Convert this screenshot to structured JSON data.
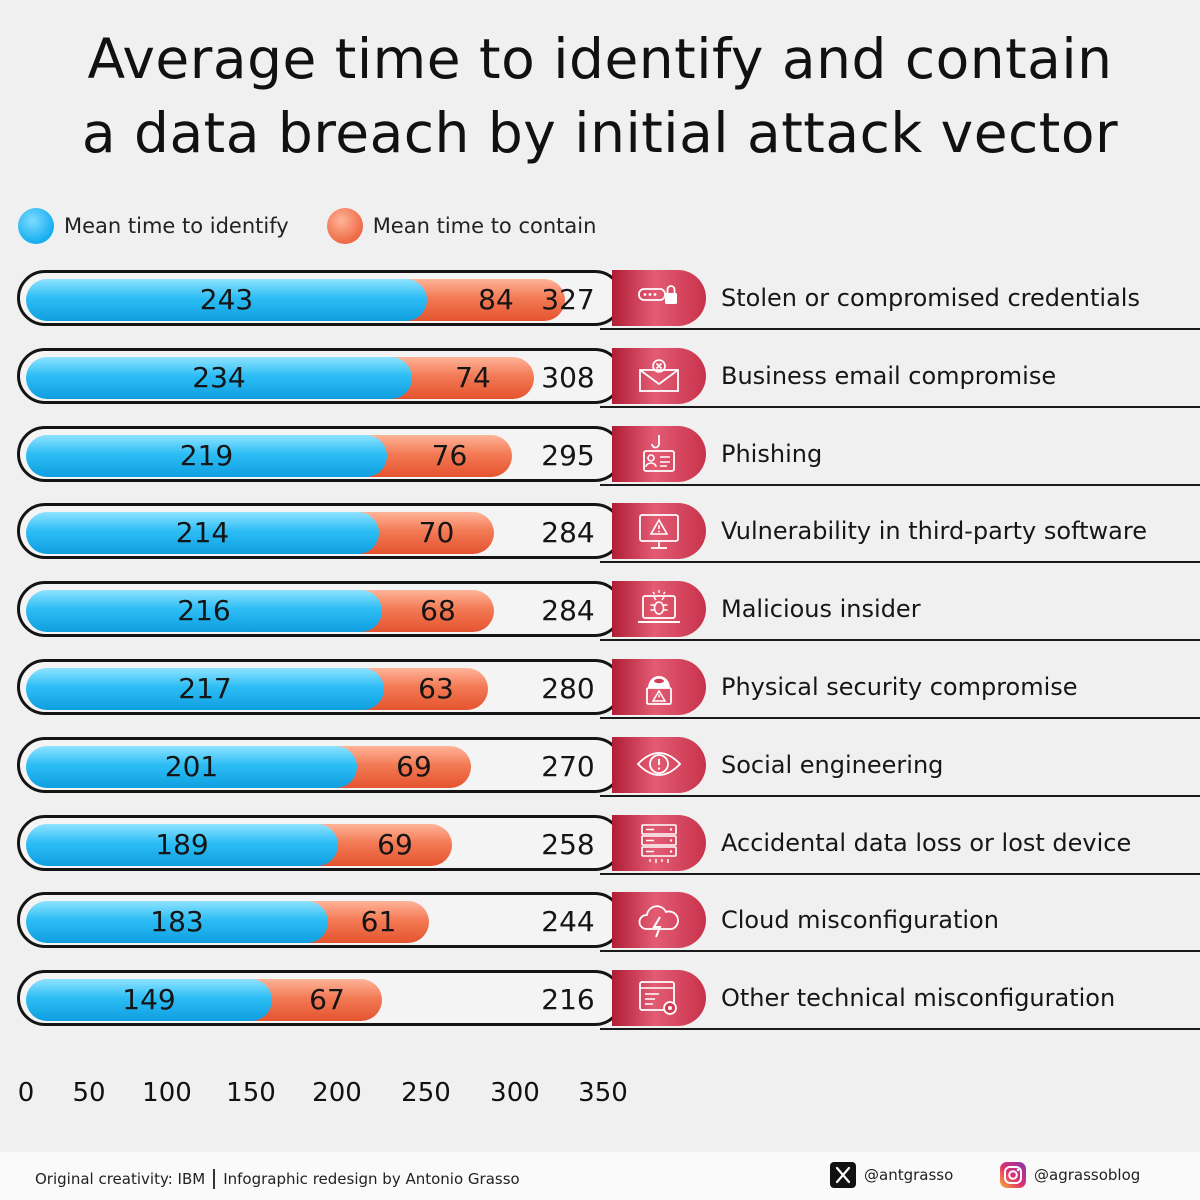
{
  "title_line1": "Average time to identify and contain",
  "title_line2": "a data breach by initial attack vector",
  "legend": {
    "identify": "Mean time to identify",
    "contain": "Mean time to contain"
  },
  "colors": {
    "identify": "#2dbdf5",
    "contain": "#f37a55",
    "icon_bg": "#d23b56"
  },
  "chart_data": {
    "type": "bar",
    "orientation": "horizontal",
    "stacked": true,
    "xlim": [
      0,
      350
    ],
    "x_ticks": [
      "0",
      "50",
      "100",
      "150",
      "200",
      "250",
      "300",
      "350"
    ],
    "legend_position": "top-left",
    "series": [
      {
        "name": "Mean time to identify",
        "values": [
          243,
          234,
          219,
          214,
          216,
          217,
          201,
          189,
          183,
          149
        ]
      },
      {
        "name": "Mean time to contain",
        "values": [
          84,
          74,
          76,
          70,
          68,
          63,
          69,
          69,
          61,
          67
        ]
      }
    ],
    "rows": [
      {
        "label": "Stolen or compromised credentials",
        "identify": "243",
        "contain": "84",
        "total": "327",
        "icon": "password-lock-icon"
      },
      {
        "label": "Business email compromise",
        "identify": "234",
        "contain": "74",
        "total": "308",
        "icon": "email-compromise-icon"
      },
      {
        "label": "Phishing",
        "identify": "219",
        "contain": "76",
        "total": "295",
        "icon": "phishing-hook-icon"
      },
      {
        "label": "Vulnerability in third-party software",
        "identify": "214",
        "contain": "70",
        "total": "284",
        "icon": "monitor-warning-icon"
      },
      {
        "label": "Malicious insider",
        "identify": "216",
        "contain": "68",
        "total": "284",
        "icon": "laptop-bug-icon"
      },
      {
        "label": "Physical security compromise",
        "identify": "217",
        "contain": "63",
        "total": "280",
        "icon": "hooded-person-warning-icon"
      },
      {
        "label": "Social engineering",
        "identify": "201",
        "contain": "69",
        "total": "270",
        "icon": "eye-alert-icon"
      },
      {
        "label": "Accidental data loss or lost device",
        "identify": "189",
        "contain": "69",
        "total": "258",
        "icon": "server-data-loss-icon"
      },
      {
        "label": "Cloud misconfiguration",
        "identify": "183",
        "contain": "61",
        "total": "244",
        "icon": "cloud-lightning-icon"
      },
      {
        "label": "Other technical misconfiguration",
        "identify": "149",
        "contain": "67",
        "total": "216",
        "icon": "window-gear-icon"
      }
    ]
  },
  "footer": {
    "credit_left": "Original creativity: IBM",
    "credit_right": "Infographic redesign by Antonio Grasso",
    "x_handle": "@antgrasso",
    "ig_handle": "@agrassoblog"
  }
}
